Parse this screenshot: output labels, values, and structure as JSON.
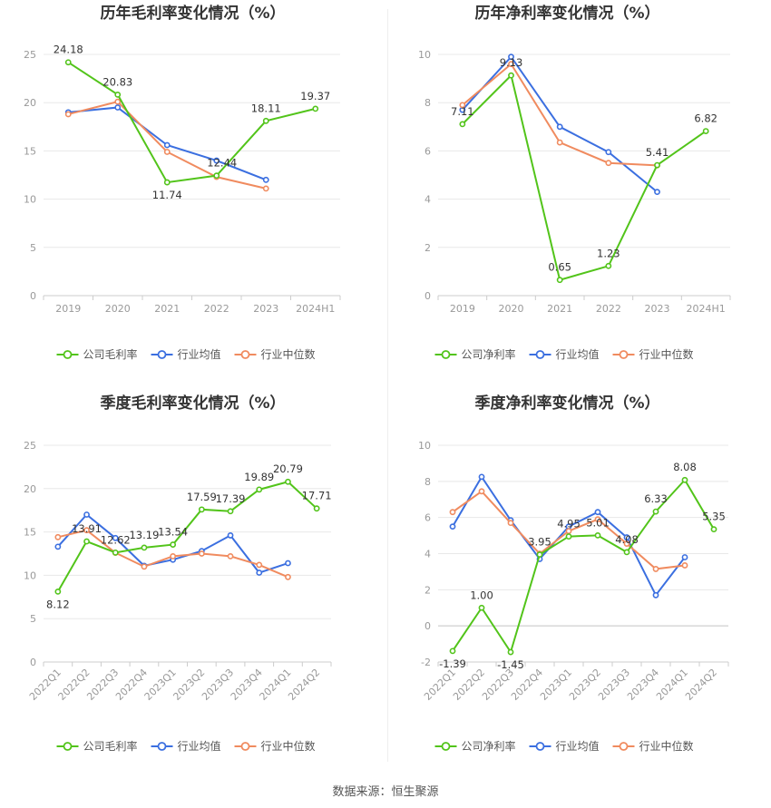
{
  "source": "数据来源：恒生聚源",
  "colors": {
    "company": "#52c41a",
    "industry_avg": "#3b6fe0",
    "industry_median": "#f08b5f",
    "grid": "#e8e8e8",
    "axis": "#cccccc"
  },
  "chart_data": [
    {
      "type": "line",
      "title": "历年毛利率变化情况（%）",
      "categories": [
        "2019",
        "2020",
        "2021",
        "2022",
        "2023",
        "2024H1"
      ],
      "ylim": [
        0,
        25
      ],
      "yticks": [
        0,
        5,
        10,
        15,
        20,
        25
      ],
      "grid": true,
      "legend_position": "bottom",
      "rotate_x_labels": false,
      "series": [
        {
          "name": "公司毛利率",
          "values": [
            24.18,
            20.83,
            11.74,
            12.44,
            18.11,
            19.37
          ],
          "labels": [
            "24.18",
            "20.83",
            "11.74",
            "12.44",
            "18.11",
            "19.37"
          ]
        },
        {
          "name": "行业均值",
          "values": [
            19.0,
            19.5,
            15.6,
            14.0,
            12.0,
            null
          ]
        },
        {
          "name": "行业中位数",
          "values": [
            18.8,
            20.1,
            14.9,
            12.3,
            11.1,
            null
          ]
        }
      ]
    },
    {
      "type": "line",
      "title": "历年净利率变化情况（%）",
      "categories": [
        "2019",
        "2020",
        "2021",
        "2022",
        "2023",
        "2024H1"
      ],
      "ylim": [
        0,
        10
      ],
      "yticks": [
        0,
        2,
        4,
        6,
        8,
        10
      ],
      "grid": true,
      "legend_position": "bottom",
      "rotate_x_labels": false,
      "series": [
        {
          "name": "公司净利率",
          "values": [
            7.11,
            9.13,
            0.65,
            1.23,
            5.41,
            6.82
          ],
          "labels": [
            "7.11",
            "9.13",
            "0.65",
            "1.23",
            "5.41",
            "6.82"
          ]
        },
        {
          "name": "行业均值",
          "values": [
            7.7,
            9.9,
            7.0,
            5.95,
            4.3,
            null
          ]
        },
        {
          "name": "行业中位数",
          "values": [
            7.9,
            9.6,
            6.35,
            5.5,
            5.4,
            null
          ]
        }
      ]
    },
    {
      "type": "line",
      "title": "季度毛利率变化情况（%）",
      "categories": [
        "2022Q1",
        "2022Q2",
        "2022Q3",
        "2022Q4",
        "2023Q1",
        "2023Q2",
        "2023Q3",
        "2023Q4",
        "2024Q1",
        "2024Q2"
      ],
      "ylim": [
        0,
        25
      ],
      "yticks": [
        0,
        5,
        10,
        15,
        20,
        25
      ],
      "grid": true,
      "legend_position": "bottom",
      "rotate_x_labels": true,
      "series": [
        {
          "name": "公司毛利率",
          "values": [
            8.12,
            13.91,
            12.62,
            13.19,
            13.54,
            17.59,
            17.39,
            19.89,
            20.79,
            17.71
          ],
          "labels": [
            "8.12",
            "13.91",
            "12.62",
            "13.19",
            "13.54",
            "17.59",
            "17.39",
            "19.89",
            "20.79",
            "17.71"
          ]
        },
        {
          "name": "行业均值",
          "values": [
            13.3,
            17.0,
            14.3,
            11.1,
            11.8,
            12.8,
            14.6,
            10.3,
            11.4,
            null
          ]
        },
        {
          "name": "行业中位数",
          "values": [
            14.4,
            15.2,
            12.6,
            11.0,
            12.2,
            12.5,
            12.2,
            11.2,
            9.8,
            null
          ]
        }
      ]
    },
    {
      "type": "line",
      "title": "季度净利率变化情况（%）",
      "categories": [
        "2022Q1",
        "2022Q2",
        "2022Q3",
        "2022Q4",
        "2023Q1",
        "2023Q2",
        "2023Q3",
        "2023Q4",
        "2024Q1",
        "2024Q2"
      ],
      "ylim": [
        -2,
        10
      ],
      "yticks": [
        -2,
        0,
        2,
        4,
        6,
        8,
        10
      ],
      "grid": true,
      "legend_position": "bottom",
      "rotate_x_labels": true,
      "series": [
        {
          "name": "公司净利率",
          "values": [
            -1.39,
            1.0,
            -1.45,
            3.95,
            4.95,
            5.01,
            4.08,
            6.33,
            8.08,
            5.35
          ],
          "labels": [
            "-1.39",
            "1.00",
            "-1.45",
            "3.95",
            "4.95",
            "5.01",
            "4.08",
            "6.33",
            "8.08",
            "5.35"
          ]
        },
        {
          "name": "行业均值",
          "values": [
            5.5,
            8.25,
            5.85,
            3.7,
            5.5,
            6.3,
            4.9,
            1.7,
            3.8,
            null
          ]
        },
        {
          "name": "行业中位数",
          "values": [
            6.3,
            7.45,
            5.7,
            4.0,
            5.25,
            5.9,
            4.55,
            3.15,
            3.35,
            null
          ]
        }
      ]
    }
  ]
}
